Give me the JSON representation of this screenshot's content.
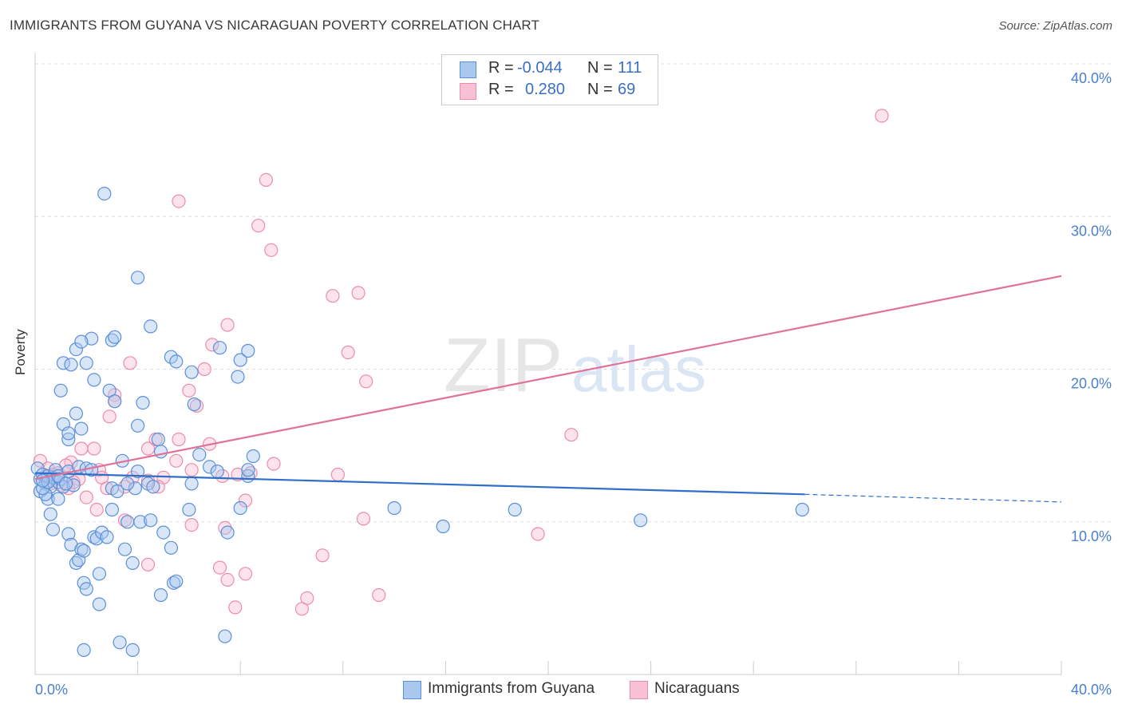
{
  "title": "IMMIGRANTS FROM GUYANA VS NICARAGUAN POVERTY CORRELATION CHART",
  "source": "Source: ZipAtlas.com",
  "legend_stats": [
    {
      "r_label": "R =",
      "r_value": "-0.044",
      "n_label": "N =",
      "n_value": "111"
    },
    {
      "r_label": "R =",
      "r_value": "0.280",
      "n_label": "N =",
      "n_value": "69"
    }
  ],
  "watermark": {
    "zip": "ZIP",
    "atlas": "atlas"
  },
  "colors": {
    "blue_fill": "#a9c8f0",
    "blue_stroke": "#5b8fd8",
    "blue_line": "#2f6fc9",
    "pink_fill": "#f8c0d4",
    "pink_stroke": "#ec8cab",
    "pink_line": "#e0729a",
    "tick_label": "#4a7fd0"
  },
  "chart_data": {
    "type": "scatter",
    "title": "IMMIGRANTS FROM GUYANA VS NICARAGUAN POVERTY CORRELATION CHART",
    "xlabel": "",
    "ylabel": "Poverty",
    "xlim": [
      0,
      40
    ],
    "ylim": [
      0,
      40
    ],
    "x_tick_labels": [
      "0.0%",
      "40.0%"
    ],
    "y_ticks": [
      10,
      20,
      30,
      40
    ],
    "y_tick_labels": [
      "10.0%",
      "20.0%",
      "30.0%",
      "40.0%"
    ],
    "grid": true,
    "legend_position": "bottom",
    "series": [
      {
        "name": "Immigrants from Guyana",
        "r": -0.044,
        "n": 111,
        "trend": {
          "x0": 0,
          "y0": 13.2,
          "x1": 30,
          "y1": 11.8,
          "x_dash_end": 40,
          "y_dash_end": 11.3
        },
        "points": [
          [
            0.1,
            13.5
          ],
          [
            0.2,
            12.8
          ],
          [
            0.3,
            13.1
          ],
          [
            0.4,
            12.5
          ],
          [
            0.5,
            13.0
          ],
          [
            0.6,
            12.3
          ],
          [
            0.7,
            12.9
          ],
          [
            0.8,
            13.4
          ],
          [
            0.9,
            12.6
          ],
          [
            1.0,
            12.8
          ],
          [
            0.2,
            12.0
          ],
          [
            0.5,
            11.5
          ],
          [
            0.6,
            10.5
          ],
          [
            0.9,
            11.5
          ],
          [
            1.1,
            12.3
          ],
          [
            1.3,
            13.3
          ],
          [
            0.4,
            11.8
          ],
          [
            0.3,
            12.2
          ],
          [
            1.5,
            12.4
          ],
          [
            1.7,
            13.6
          ],
          [
            2.0,
            13.5
          ],
          [
            2.2,
            13.4
          ],
          [
            0.7,
            9.5
          ],
          [
            1.3,
            9.2
          ],
          [
            1.4,
            8.5
          ],
          [
            1.6,
            7.3
          ],
          [
            1.7,
            7.5
          ],
          [
            1.8,
            8.2
          ],
          [
            1.9,
            8.1
          ],
          [
            2.3,
            9.0
          ],
          [
            2.4,
            8.9
          ],
          [
            2.6,
            9.3
          ],
          [
            2.8,
            9.0
          ],
          [
            1.9,
            6.0
          ],
          [
            2.0,
            5.6
          ],
          [
            2.5,
            6.6
          ],
          [
            2.5,
            4.6
          ],
          [
            1.9,
            1.6
          ],
          [
            3.3,
            2.1
          ],
          [
            3.8,
            1.6
          ],
          [
            3.5,
            8.2
          ],
          [
            3.8,
            7.3
          ],
          [
            4.1,
            10.0
          ],
          [
            4.4,
            12.5
          ],
          [
            4.6,
            12.3
          ],
          [
            5.0,
            9.3
          ],
          [
            5.3,
            8.3
          ],
          [
            4.9,
            5.2
          ],
          [
            5.4,
            6.0
          ],
          [
            5.5,
            6.1
          ],
          [
            6.0,
            10.8
          ],
          [
            6.1,
            12.5
          ],
          [
            6.8,
            13.6
          ],
          [
            7.4,
            2.5
          ],
          [
            7.5,
            9.3
          ],
          [
            8.0,
            10.9
          ],
          [
            8.3,
            13.0
          ],
          [
            8.3,
            13.4
          ],
          [
            8.5,
            14.3
          ],
          [
            4.0,
            26.0
          ],
          [
            2.7,
            31.5
          ],
          [
            1.6,
            21.3
          ],
          [
            2.2,
            22.0
          ],
          [
            3.0,
            21.9
          ],
          [
            3.1,
            22.1
          ],
          [
            1.1,
            20.4
          ],
          [
            1.4,
            20.3
          ],
          [
            2.0,
            20.4
          ],
          [
            5.3,
            20.8
          ],
          [
            5.5,
            20.5
          ],
          [
            6.1,
            19.8
          ],
          [
            7.2,
            21.4
          ],
          [
            7.9,
            19.5
          ],
          [
            8.0,
            20.6
          ],
          [
            8.3,
            21.2
          ],
          [
            4.5,
            22.8
          ],
          [
            1.8,
            21.8
          ],
          [
            2.3,
            19.3
          ],
          [
            2.9,
            18.6
          ],
          [
            3.1,
            17.9
          ],
          [
            4.2,
            17.8
          ],
          [
            6.2,
            17.7
          ],
          [
            1.0,
            18.6
          ],
          [
            1.6,
            17.1
          ],
          [
            1.8,
            16.1
          ],
          [
            1.1,
            16.4
          ],
          [
            1.3,
            15.4
          ],
          [
            1.3,
            15.8
          ],
          [
            4.0,
            16.3
          ],
          [
            4.8,
            15.4
          ],
          [
            4.9,
            14.6
          ],
          [
            3.4,
            14.0
          ],
          [
            4.0,
            13.3
          ],
          [
            6.4,
            14.4
          ],
          [
            7.1,
            13.3
          ],
          [
            3.9,
            12.2
          ],
          [
            3.6,
            12.5
          ],
          [
            3.0,
            12.2
          ],
          [
            3.2,
            12.0
          ],
          [
            3.0,
            10.8
          ],
          [
            0.5,
            12.6
          ],
          [
            0.3,
            12.7
          ],
          [
            0.9,
            13.0
          ],
          [
            1.2,
            12.5
          ],
          [
            14.0,
            10.9
          ],
          [
            15.9,
            9.7
          ],
          [
            18.7,
            10.8
          ],
          [
            23.6,
            10.1
          ],
          [
            29.9,
            10.8
          ],
          [
            3.6,
            10.0
          ],
          [
            4.5,
            10.1
          ]
        ]
      },
      {
        "name": "Nicaraguans",
        "r": 0.28,
        "n": 69,
        "trend": {
          "x0": 0,
          "y0": 12.8,
          "x1": 40,
          "y1": 26.1
        },
        "points": [
          [
            33.0,
            36.6
          ],
          [
            9.0,
            32.4
          ],
          [
            5.6,
            31.0
          ],
          [
            8.7,
            29.4
          ],
          [
            9.2,
            27.8
          ],
          [
            11.6,
            24.8
          ],
          [
            12.6,
            25.0
          ],
          [
            7.5,
            22.9
          ],
          [
            6.9,
            21.6
          ],
          [
            12.2,
            21.1
          ],
          [
            12.9,
            19.2
          ],
          [
            3.7,
            20.4
          ],
          [
            6.6,
            20.0
          ],
          [
            6.0,
            18.6
          ],
          [
            3.1,
            18.3
          ],
          [
            3.1,
            17.9
          ],
          [
            6.3,
            17.6
          ],
          [
            2.9,
            16.9
          ],
          [
            20.9,
            15.7
          ],
          [
            4.7,
            15.4
          ],
          [
            5.6,
            15.4
          ],
          [
            6.8,
            15.1
          ],
          [
            4.4,
            14.8
          ],
          [
            2.3,
            14.8
          ],
          [
            1.8,
            14.8
          ],
          [
            0.2,
            14.0
          ],
          [
            1.4,
            13.9
          ],
          [
            2.5,
            13.4
          ],
          [
            0.5,
            13.5
          ],
          [
            0.7,
            13.1
          ],
          [
            0.9,
            13.2
          ],
          [
            1.2,
            13.7
          ],
          [
            2.6,
            12.9
          ],
          [
            3.8,
            12.9
          ],
          [
            4.4,
            12.7
          ],
          [
            5.0,
            12.9
          ],
          [
            6.1,
            13.4
          ],
          [
            5.5,
            14.0
          ],
          [
            7.3,
            13.0
          ],
          [
            7.9,
            13.1
          ],
          [
            8.4,
            13.2
          ],
          [
            9.3,
            13.8
          ],
          [
            11.8,
            13.1
          ],
          [
            2.8,
            12.2
          ],
          [
            4.8,
            12.3
          ],
          [
            3.5,
            12.3
          ],
          [
            2.4,
            10.8
          ],
          [
            3.5,
            10.1
          ],
          [
            8.2,
            11.4
          ],
          [
            0.6,
            12.5
          ],
          [
            1.3,
            12.2
          ],
          [
            1.7,
            12.8
          ],
          [
            2.0,
            11.6
          ],
          [
            12.8,
            10.2
          ],
          [
            19.6,
            9.2
          ],
          [
            7.4,
            9.6
          ],
          [
            6.1,
            9.8
          ],
          [
            4.4,
            7.2
          ],
          [
            7.2,
            7.0
          ],
          [
            8.2,
            6.6
          ],
          [
            7.5,
            6.2
          ],
          [
            11.2,
            7.8
          ],
          [
            10.6,
            5.0
          ],
          [
            10.4,
            4.3
          ],
          [
            13.4,
            5.2
          ],
          [
            7.8,
            4.4
          ],
          [
            1.5,
            12.6
          ],
          [
            0.4,
            13.0
          ],
          [
            1.0,
            12.4
          ]
        ]
      }
    ]
  }
}
